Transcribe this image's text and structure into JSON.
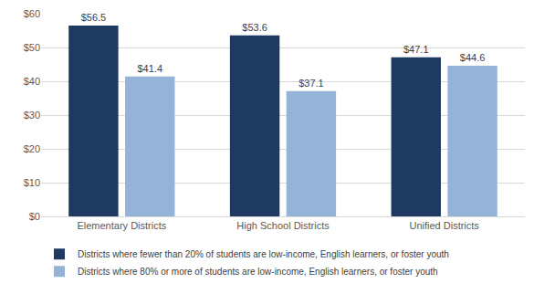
{
  "chart_data": {
    "type": "bar",
    "categories": [
      "Elementary Districts",
      "High School Districts",
      "Unified Districts"
    ],
    "series": [
      {
        "name": "Districts where fewer than 20% of students are low-income, English learners, or foster youth",
        "color": "#1f3a60",
        "values": [
          56.5,
          53.6,
          47.1
        ],
        "value_labels": [
          "$56.5",
          "$53.6",
          "$47.1"
        ]
      },
      {
        "name": "Districts where 80% or more of students are low-income, English learners, or foster youth",
        "color": "#95b3d7",
        "values": [
          41.4,
          37.1,
          44.6
        ],
        "value_labels": [
          "$41.4",
          "$37.1",
          "$44.6"
        ]
      }
    ],
    "ylim": [
      0,
      60
    ],
    "yticks": [
      {
        "value": 0,
        "label": "$0"
      },
      {
        "value": 10,
        "label": "$10"
      },
      {
        "value": 20,
        "label": "$20"
      },
      {
        "value": 30,
        "label": "$30"
      },
      {
        "value": 40,
        "label": "$40"
      },
      {
        "value": 50,
        "label": "$50"
      },
      {
        "value": 60,
        "label": "$60"
      }
    ],
    "grid": true,
    "data_labels": true,
    "legend": "bottom"
  }
}
